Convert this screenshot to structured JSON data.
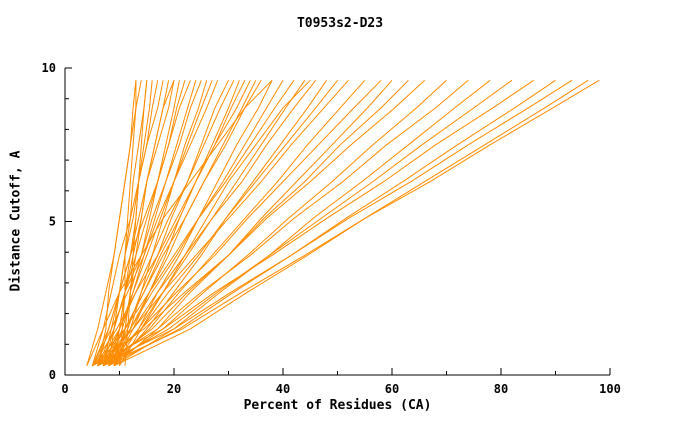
{
  "chart_data": {
    "type": "line",
    "title": "T0953s2-D23",
    "xlabel": "Percent of Residues (CA)",
    "ylabel": "Distance Cutoff, A",
    "xlim": [
      0,
      100
    ],
    "ylim": [
      0,
      10
    ],
    "x_ticks": [
      0,
      20,
      40,
      60,
      80,
      100
    ],
    "x_minor_step": 10,
    "y_ticks": [
      0,
      5,
      10
    ],
    "y_minor_step": 1,
    "grid": false,
    "legend": "none",
    "line_color": "#ff8c00",
    "axis_color": "#000000",
    "note": "Each series gives Percent of Residues (CA) values at the shared Distance Cutoff levels y_levels; ~50 overlapping model accuracy curves, unlabeled.",
    "y_levels": [
      0.3,
      1.5,
      2.7,
      3.9,
      5.1,
      6.3,
      7.5,
      8.7,
      9.6
    ],
    "series_x": [
      [
        10,
        10.5,
        11,
        11,
        11.5,
        12,
        12.5,
        13,
        13
      ],
      [
        8,
        9,
        10,
        11,
        12,
        12.5,
        13.5,
        14.5,
        15
      ],
      [
        6,
        7.5,
        8,
        9,
        10,
        11,
        12,
        13,
        14
      ],
      [
        9,
        10,
        11,
        12,
        13,
        13.5,
        14.5,
        15.5,
        16
      ],
      [
        7,
        8.5,
        10,
        11,
        12.5,
        13.5,
        15,
        16,
        17
      ],
      [
        5,
        7,
        8.5,
        10,
        12,
        13.5,
        15,
        17,
        18
      ],
      [
        8,
        10,
        11,
        12.5,
        14,
        15,
        16.5,
        18,
        19
      ],
      [
        6,
        8,
        10,
        12,
        13.5,
        15,
        17,
        19,
        20
      ],
      [
        9,
        11,
        12,
        14,
        15.5,
        17,
        18.5,
        20,
        21
      ],
      [
        7,
        9,
        11,
        13,
        15,
        17,
        19,
        20.5,
        22
      ],
      [
        5,
        8,
        10,
        12,
        14.5,
        17,
        19,
        21,
        23
      ],
      [
        8,
        10.5,
        12.5,
        14.5,
        16.5,
        18.5,
        20.5,
        22.5,
        24
      ],
      [
        6,
        9,
        11,
        14,
        16,
        18.5,
        21,
        23,
        25
      ],
      [
        9,
        12,
        14,
        16,
        18,
        20,
        22,
        24.5,
        26
      ],
      [
        7,
        10,
        12.5,
        15,
        17.5,
        20,
        22.5,
        25,
        27
      ],
      [
        5,
        8.5,
        11.5,
        14.5,
        17,
        20,
        23,
        26,
        28
      ],
      [
        8,
        11.5,
        14,
        17,
        19.5,
        22.5,
        25,
        27.5,
        30
      ],
      [
        6,
        10,
        13,
        16,
        19,
        22.5,
        25.5,
        28.5,
        31
      ],
      [
        9,
        12.5,
        15.5,
        18.5,
        21,
        24,
        27,
        30,
        32
      ],
      [
        7,
        11,
        14.5,
        17.5,
        21,
        24,
        27.5,
        30.5,
        33
      ],
      [
        5,
        9.5,
        13,
        17,
        20.5,
        24,
        27.5,
        31.5,
        34
      ],
      [
        8,
        12,
        15.5,
        19,
        22,
        25.5,
        29,
        32.5,
        35
      ],
      [
        6,
        11,
        14.5,
        18,
        22,
        25.5,
        29.5,
        33,
        36
      ],
      [
        9,
        13.5,
        17,
        21,
        24.5,
        28,
        31.5,
        35.5,
        38
      ],
      [
        7,
        12,
        16,
        20.5,
        24.5,
        29,
        33,
        37,
        40
      ],
      [
        5,
        11,
        15.5,
        20,
        24.5,
        29.5,
        34,
        38.5,
        42
      ],
      [
        8,
        13.5,
        18,
        22.5,
        27,
        31.5,
        36,
        40.5,
        44
      ],
      [
        6,
        12.5,
        17,
        22,
        27,
        32.5,
        37,
        42,
        46
      ],
      [
        9,
        15,
        20,
        25,
        29.5,
        34.5,
        39.5,
        44.5,
        48
      ],
      [
        7,
        14,
        19,
        24.5,
        29.5,
        35,
        40.5,
        46,
        50
      ],
      [
        5,
        12.5,
        18,
        24,
        30,
        36,
        41.5,
        47.5,
        52
      ],
      [
        8,
        15.5,
        21,
        27,
        33,
        39,
        44.5,
        50.5,
        55
      ],
      [
        6,
        14,
        20.5,
        27.5,
        33.5,
        40,
        46.5,
        53,
        58
      ],
      [
        9,
        17,
        23,
        30,
        36,
        42.5,
        49,
        55.5,
        60
      ],
      [
        7,
        16,
        22.5,
        30,
        36.5,
        44,
        50.5,
        58,
        63
      ],
      [
        5,
        14.5,
        22,
        30,
        37,
        45,
        52.5,
        60.5,
        66
      ],
      [
        8,
        18,
        25.5,
        33.5,
        41,
        49,
        56.5,
        64.5,
        70
      ],
      [
        6,
        17,
        25,
        34,
        42,
        51,
        59,
        68,
        74
      ],
      [
        9,
        20,
        28.5,
        37.5,
        45.5,
        54.5,
        63,
        71.5,
        78
      ],
      [
        7,
        19,
        28,
        37.5,
        47,
        56.5,
        65.5,
        75,
        82
      ],
      [
        5,
        18,
        27.5,
        38,
        48,
        58.5,
        68,
        78.5,
        86
      ],
      [
        8,
        21,
        31,
        41.5,
        51.5,
        62,
        72,
        82.5,
        90
      ],
      [
        6,
        20,
        30.5,
        41.5,
        52,
        63.5,
        74,
        85,
        93
      ],
      [
        9,
        23,
        33.5,
        44.5,
        55,
        66,
        77,
        88,
        96
      ],
      [
        7,
        21.5,
        32.5,
        44,
        55,
        67,
        78,
        89.5,
        98
      ],
      [
        10,
        11,
        12,
        13,
        14,
        15,
        16.5,
        18,
        20
      ],
      [
        11,
        11.5,
        12,
        12.5,
        13,
        13.5,
        14,
        14.5,
        15
      ],
      [
        4,
        7,
        10,
        14,
        18,
        23,
        28,
        33,
        38
      ],
      [
        4,
        6,
        7.5,
        9,
        10,
        11,
        12,
        12.5,
        13
      ],
      [
        10,
        14,
        18,
        22,
        26,
        30,
        35,
        40,
        45
      ]
    ]
  }
}
